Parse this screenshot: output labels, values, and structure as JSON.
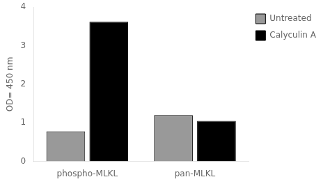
{
  "chart_data": {
    "type": "bar",
    "categories": [
      "phospho-MLKL",
      "pan-MLKL"
    ],
    "series": [
      {
        "name": "Untreated",
        "color": "#999999",
        "values": [
          0.78,
          1.2
        ]
      },
      {
        "name": "Calyculin A",
        "color": "#000000",
        "values": [
          3.62,
          1.05
        ]
      }
    ],
    "ylabel": "OD= 450 nm",
    "ylim": [
      0,
      4
    ],
    "yticks": [
      0,
      1,
      2,
      3,
      4
    ],
    "grid": false,
    "legend": "right"
  }
}
